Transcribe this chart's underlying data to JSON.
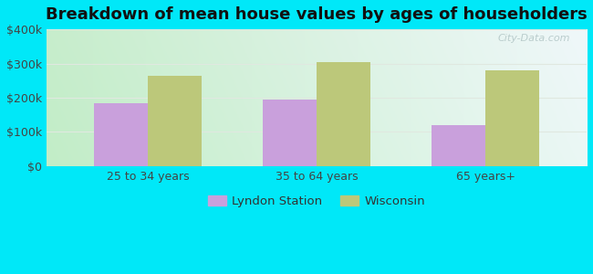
{
  "title": "Breakdown of mean house values by ages of householders",
  "categories": [
    "25 to 34 years",
    "35 to 64 years",
    "65 years+"
  ],
  "lyndon_station": [
    185000,
    195000,
    120000
  ],
  "wisconsin": [
    265000,
    305000,
    280000
  ],
  "lyndon_color": "#c9a0dc",
  "wisconsin_color": "#bcc87a",
  "background_outer": "#00e8f8",
  "ylim": [
    0,
    400000
  ],
  "yticks": [
    0,
    100000,
    200000,
    300000,
    400000
  ],
  "ytick_labels": [
    "$0",
    "$100k",
    "$200k",
    "$300k",
    "$400k"
  ],
  "bar_width": 0.32,
  "legend_labels": [
    "Lyndon Station",
    "Wisconsin"
  ],
  "watermark": "City-Data.com",
  "grid_color": "#e0e8e0",
  "title_fontsize": 13
}
